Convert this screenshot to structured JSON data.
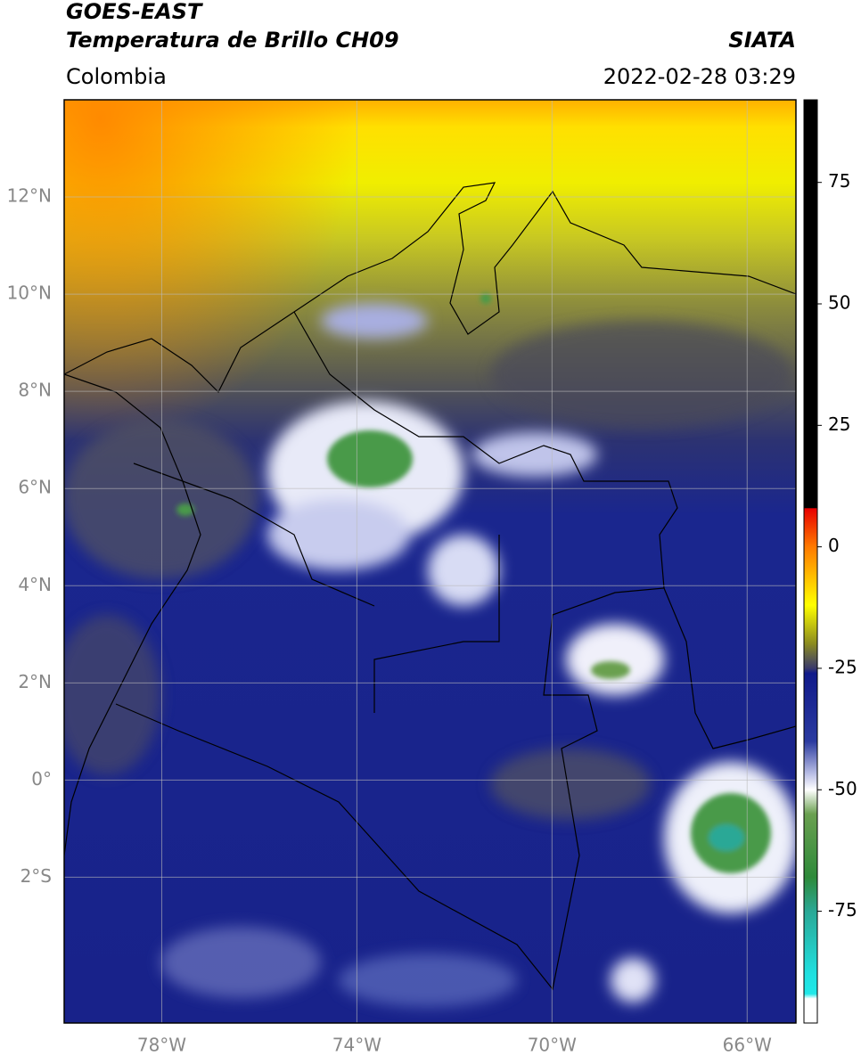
{
  "header": {
    "title": "GOES-EAST",
    "subtitle": "Temperatura de Brillo CH09",
    "source": "SIATA",
    "region": "Colombia",
    "datetime": "2022-02-28 03:29"
  },
  "map": {
    "lonlim": [
      -80,
      -65
    ],
    "latlim": [
      -5,
      14
    ],
    "lonticks": [
      {
        "value": -78,
        "label": "78°W"
      },
      {
        "value": -74,
        "label": "74°W"
      },
      {
        "value": -70,
        "label": "70°W"
      },
      {
        "value": -66,
        "label": "66°W"
      }
    ],
    "latticks": [
      {
        "value": 12,
        "label": "12°N"
      },
      {
        "value": 10,
        "label": "10°N"
      },
      {
        "value": 8,
        "label": "8°N"
      },
      {
        "value": 6,
        "label": "6°N"
      },
      {
        "value": 4,
        "label": "4°N"
      },
      {
        "value": 2,
        "label": "2°N"
      },
      {
        "value": 0,
        "label": "0°"
      },
      {
        "value": -2,
        "label": "2°S"
      }
    ],
    "grid": true
  },
  "colorbar": {
    "lim": [
      -98,
      92
    ],
    "ticks": [
      75,
      50,
      25,
      0,
      -25,
      -50,
      -75
    ],
    "stops": [
      {
        "value": 92,
        "color": "#000000"
      },
      {
        "value": 8,
        "color": "#000000"
      },
      {
        "value": 7.9,
        "color": "#e80000"
      },
      {
        "value": 0,
        "color": "#ff7a00"
      },
      {
        "value": -12,
        "color": "#ffff00"
      },
      {
        "value": -20,
        "color": "#8a8a20"
      },
      {
        "value": -23,
        "color": "#5a5a50"
      },
      {
        "value": -25,
        "color": "#3a3a6a"
      },
      {
        "value": -26,
        "color": "#101a8a"
      },
      {
        "value": -40,
        "color": "#2a3aa0"
      },
      {
        "value": -47,
        "color": "#c0c4e8"
      },
      {
        "value": -50,
        "color": "#ffffff"
      },
      {
        "value": -55,
        "color": "#6aa050"
      },
      {
        "value": -68,
        "color": "#2e8a3a"
      },
      {
        "value": -75,
        "color": "#2aa896"
      },
      {
        "value": -88,
        "color": "#20e0e0"
      },
      {
        "value": -92,
        "color": "#20e8e8"
      },
      {
        "value": -93,
        "color": "#ffffff"
      },
      {
        "value": -98,
        "color": "#ffffff"
      }
    ]
  }
}
